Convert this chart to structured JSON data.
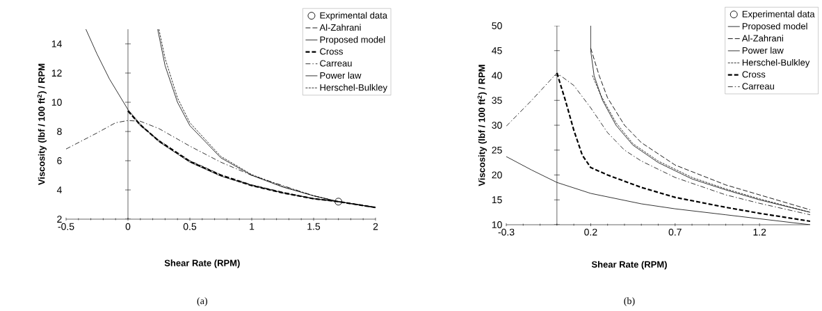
{
  "chart_data": [
    {
      "type": "line",
      "xlabel": "Shear Rate (RPM)",
      "ylabel": "Viscosity (lbf / 100 ft$^{2}$) / RPM",
      "annotations": [
        "(a)"
      ],
      "xlim": [
        -0.5,
        2
      ],
      "ylim": [
        2,
        15
      ],
      "xticks": [
        -0.5,
        0,
        0.5,
        1,
        1.5,
        2
      ],
      "yticks": [
        2,
        4,
        6,
        8,
        10,
        12,
        14
      ],
      "legend": "top right",
      "series": [
        {
          "name": "Exprimental data",
          "type": "scatter",
          "marker": "circle",
          "color": "#000000",
          "x": [
            1.7
          ],
          "values": [
            3.2
          ]
        },
        {
          "name": "Al-Zahrani",
          "line_style": "dashed",
          "color": "#000000",
          "x": [
            0,
            0.1,
            0.25,
            0.5,
            0.75,
            1,
            1.25,
            1.5,
            1.7,
            2
          ],
          "values": [
            9.4,
            8.4,
            7.4,
            6.0,
            5.05,
            4.35,
            3.85,
            3.4,
            3.2,
            2.8
          ]
        },
        {
          "name": "Proposed model",
          "line_style": "solid",
          "color": "#000000",
          "x": [
            -0.34,
            -0.25,
            -0.15,
            0,
            0.1,
            0.25,
            0.5,
            0.75,
            1,
            1.25,
            1.5,
            1.7,
            2
          ],
          "values": [
            15,
            13.3,
            11.6,
            9.5,
            8.5,
            7.3,
            5.9,
            4.95,
            4.3,
            3.8,
            3.4,
            3.2,
            2.8
          ]
        },
        {
          "name": "Cross",
          "line_style": "dashed bold",
          "color": "#000000",
          "x": [
            0,
            0.1,
            0.25,
            0.5,
            0.75,
            1,
            1.25,
            1.5,
            1.7,
            2
          ],
          "values": [
            9.4,
            8.45,
            7.35,
            5.95,
            5.0,
            4.3,
            3.8,
            3.4,
            3.2,
            2.8
          ]
        },
        {
          "name": "Carreau",
          "line_style": "dashdot",
          "color": "#000000",
          "x": [
            -0.5,
            -0.25,
            -0.1,
            0,
            0.1,
            0.25,
            0.5,
            0.75,
            1,
            1.25,
            1.5,
            1.7,
            2
          ],
          "values": [
            6.8,
            7.9,
            8.6,
            8.75,
            8.7,
            8.2,
            7.0,
            5.9,
            5.0,
            4.3,
            3.6,
            3.2,
            2.8
          ]
        },
        {
          "name": "Power law",
          "line_style": "solid",
          "color": "#000000",
          "x": [
            0.24,
            0.3,
            0.4,
            0.5,
            0.75,
            1,
            1.25,
            1.5,
            1.7,
            2
          ],
          "values": [
            15,
            12.5,
            10,
            8.4,
            6.2,
            5.0,
            4.2,
            3.6,
            3.2,
            2.8
          ]
        },
        {
          "name": "Herschel-Bulkley",
          "line_style": "dotted",
          "color": "#000000",
          "x": [
            0.25,
            0.3,
            0.4,
            0.5,
            0.75,
            1,
            1.25,
            1.5,
            1.7,
            2
          ],
          "values": [
            15,
            13,
            10.3,
            8.6,
            6.3,
            5.05,
            4.25,
            3.6,
            3.2,
            2.8
          ]
        }
      ]
    },
    {
      "type": "line",
      "xlabel": "Shear Rate (RPM)",
      "ylabel": "Viscosity (lbf / 100 ft$^{2}$) / RPM",
      "annotations": [
        "(b)"
      ],
      "xlim": [
        -0.3,
        1.5
      ],
      "ylim": [
        10,
        50
      ],
      "xticks": [
        -0.3,
        0.2,
        0.7,
        1.2
      ],
      "yticks": [
        10,
        15,
        20,
        25,
        30,
        35,
        40,
        45,
        50
      ],
      "legend": "top right",
      "series": [
        {
          "name": "Experimental data",
          "type": "scatter",
          "marker": "circle",
          "color": "#000000"
        },
        {
          "name": "Proposed model",
          "line_style": "solid",
          "color": "#000000",
          "x": [
            -0.3,
            -0.15,
            0,
            0.2,
            0.5,
            0.7,
            1.0,
            1.2,
            1.5
          ],
          "values": [
            23.7,
            21.0,
            18.5,
            16.3,
            14.2,
            13.2,
            12.0,
            11.2,
            10
          ]
        },
        {
          "name": "Al-Zahrani",
          "line_style": "dashed",
          "color": "#000000",
          "x": [
            0.2,
            0.25,
            0.3,
            0.4,
            0.5,
            0.7,
            1.0,
            1.2,
            1.5
          ],
          "values": [
            45.5,
            40,
            35.5,
            30,
            26.5,
            22,
            18,
            16,
            13
          ]
        },
        {
          "name": "Power law",
          "line_style": "solid",
          "color": "#000000",
          "x": [
            0.2,
            0.2,
            0.22,
            0.27,
            0.35,
            0.45,
            0.6,
            0.8,
            1.0,
            1.2,
            1.5
          ],
          "values": [
            50,
            45,
            40,
            35,
            30,
            26,
            22.5,
            19.2,
            17,
            15,
            12.5
          ]
        },
        {
          "name": "Herschel-Bulkley",
          "line_style": "dotted",
          "color": "#000000",
          "x": [
            0.21,
            0.26,
            0.35,
            0.45,
            0.6,
            0.8,
            1.0,
            1.2,
            1.5
          ],
          "values": [
            40,
            36,
            30.5,
            26.3,
            22.8,
            19.5,
            17.2,
            15.2,
            12.5
          ]
        },
        {
          "name": "Cross",
          "line_style": "dashed bold",
          "color": "#000000",
          "x": [
            0,
            0.05,
            0.1,
            0.15,
            0.2,
            0.3,
            0.5,
            0.7,
            1.0,
            1.2,
            1.5
          ],
          "values": [
            40.5,
            35,
            29,
            24,
            21.5,
            20,
            17.5,
            15.5,
            13.5,
            12.3,
            10.7
          ]
        },
        {
          "name": "Carreau",
          "line_style": "dashdot",
          "color": "#000000",
          "x": [
            -0.3,
            -0.15,
            0,
            0.1,
            0.2,
            0.3,
            0.4,
            0.5,
            0.7,
            1.0,
            1.2,
            1.5
          ],
          "values": [
            29.8,
            35,
            40.5,
            38,
            33.5,
            28.5,
            25,
            22.8,
            19.5,
            16,
            14.3,
            12
          ]
        }
      ]
    }
  ]
}
